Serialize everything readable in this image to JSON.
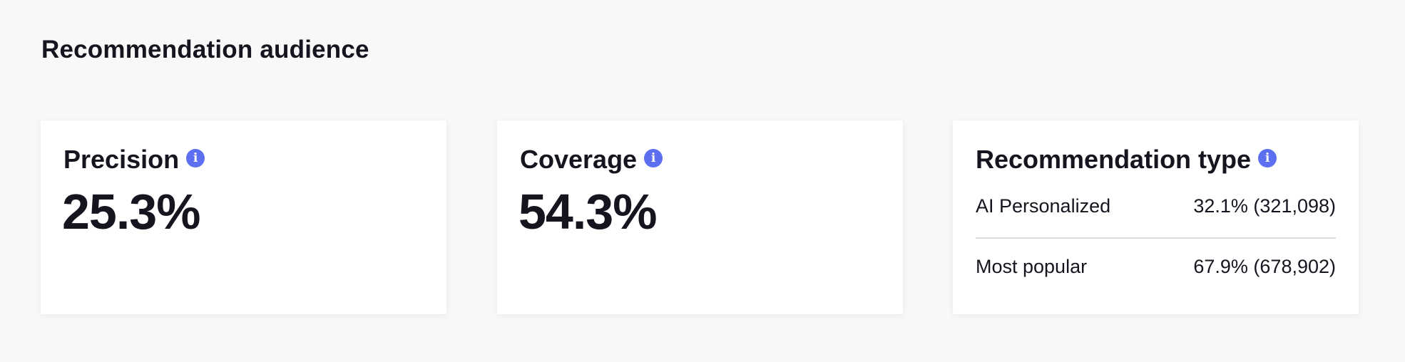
{
  "section": {
    "title": "Recommendation audience"
  },
  "cards": {
    "precision": {
      "title": "Precision",
      "value": "25.3%",
      "info_icon": "i"
    },
    "coverage": {
      "title": "Coverage",
      "value": "54.3%",
      "info_icon": "i"
    },
    "recommendation_type": {
      "title": "Recommendation type",
      "info_icon": "i",
      "rows": [
        {
          "label": "AI Personalized",
          "value": "32.1% (321,098)"
        },
        {
          "label": "Most popular",
          "value": "67.9% (678,902)"
        }
      ]
    }
  },
  "colors": {
    "info_icon": "#5b6ff0",
    "text": "#15151f",
    "background": "#f8f8f8",
    "card": "#ffffff"
  }
}
